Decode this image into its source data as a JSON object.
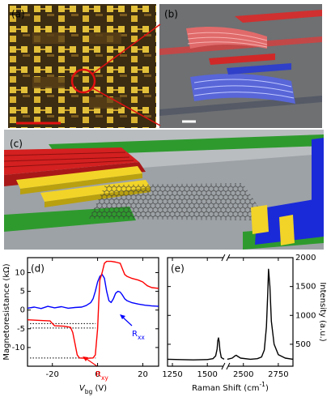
{
  "panels": {
    "a": "(a)",
    "b": "(b)",
    "c": "(c)"
  },
  "chart_data": [
    {
      "type": "line",
      "panel_label": "(d)",
      "ylabel": "Magnetoresistance (kΩ)",
      "xlabel": {
        "text": "V",
        "sub": "bg",
        "suffix": " (V)"
      },
      "xlim": [
        -31,
        27
      ],
      "ylim": [
        -15,
        14
      ],
      "xticks": [
        -20,
        0,
        20
      ],
      "yticks": [
        -10,
        -5,
        0,
        5,
        10
      ],
      "y_axis_side": "left",
      "reference_lines": [
        -3.6,
        -4.8,
        -12.8
      ],
      "annotations": [
        {
          "text": "R",
          "sub": "xx"
        },
        {
          "text": "R",
          "sub": "xy"
        }
      ],
      "series": [
        {
          "name": "Rxx",
          "color": "#0000ff",
          "x": [
            -31,
            -28,
            -25,
            -22,
            -19,
            -16,
            -13,
            -10,
            -7,
            -5,
            -3,
            -2,
            -1,
            0,
            1,
            2,
            3,
            4,
            5,
            6,
            7,
            8,
            9,
            10,
            11,
            12,
            13,
            15,
            18,
            21,
            24,
            27
          ],
          "values": [
            0.5,
            0.8,
            0.4,
            1.0,
            0.6,
            0.9,
            0.5,
            0.7,
            0.8,
            1.2,
            2,
            3,
            5,
            7.5,
            9,
            9.5,
            8.5,
            5,
            2.5,
            2,
            3,
            4.5,
            5,
            4.8,
            4,
            3,
            2.5,
            2,
            1.6,
            1.3,
            1.1,
            1
          ]
        },
        {
          "name": "Rxy",
          "color": "#ff0000",
          "x": [
            -31,
            -25,
            -21,
            -20,
            -19,
            -15,
            -12,
            -11,
            -10,
            -9,
            -8,
            -5,
            -2,
            -1,
            0,
            0.5,
            1,
            2,
            3,
            4,
            6,
            8,
            10,
            11,
            12,
            13,
            15,
            18,
            20,
            22,
            24,
            27
          ],
          "values": [
            -2.6,
            -2.8,
            -2.9,
            -3.6,
            -4.2,
            -4.3,
            -4.6,
            -6,
            -9,
            -12,
            -12.8,
            -12.9,
            -12.8,
            -12,
            -5,
            2,
            8,
            10,
            12.5,
            13,
            13,
            12.8,
            12.5,
            11,
            9.5,
            9,
            8.5,
            8,
            7.5,
            6.5,
            6,
            5.8
          ]
        }
      ]
    },
    {
      "type": "line",
      "panel_label": "(e)",
      "ylabel": "Intensity (a.u.)",
      "xlabel": {
        "text": "Raman Shift (cm",
        "sup": "-1",
        "suffix": ")"
      },
      "xlim_segments": [
        [
          1215,
          1620
        ],
        [
          2385,
          2855
        ]
      ],
      "ylim": [
        120,
        2000
      ],
      "xticks": [
        1250,
        1500,
        2500,
        2750
      ],
      "yticks": [
        500,
        1000,
        1500,
        2000
      ],
      "y_axis_side": "right",
      "series": [
        {
          "name": "Raman",
          "color": "#000000",
          "x": [
            1215,
            1300,
            1400,
            1500,
            1540,
            1560,
            1570,
            1575,
            1580,
            1585,
            1590,
            1600,
            1620,
            2000,
            2385,
            2420,
            2440,
            2450,
            2460,
            2480,
            2550,
            2600,
            2630,
            2650,
            2665,
            2675,
            2680,
            2690,
            2700,
            2720,
            2750,
            2800,
            2855
          ],
          "values": [
            240,
            235,
            230,
            235,
            250,
            300,
            420,
            560,
            610,
            540,
            400,
            270,
            240,
            null,
            240,
            260,
            300,
            310,
            290,
            260,
            240,
            250,
            280,
            400,
            800,
            1400,
            1800,
            1500,
            900,
            500,
            320,
            260,
            240
          ]
        }
      ]
    }
  ]
}
